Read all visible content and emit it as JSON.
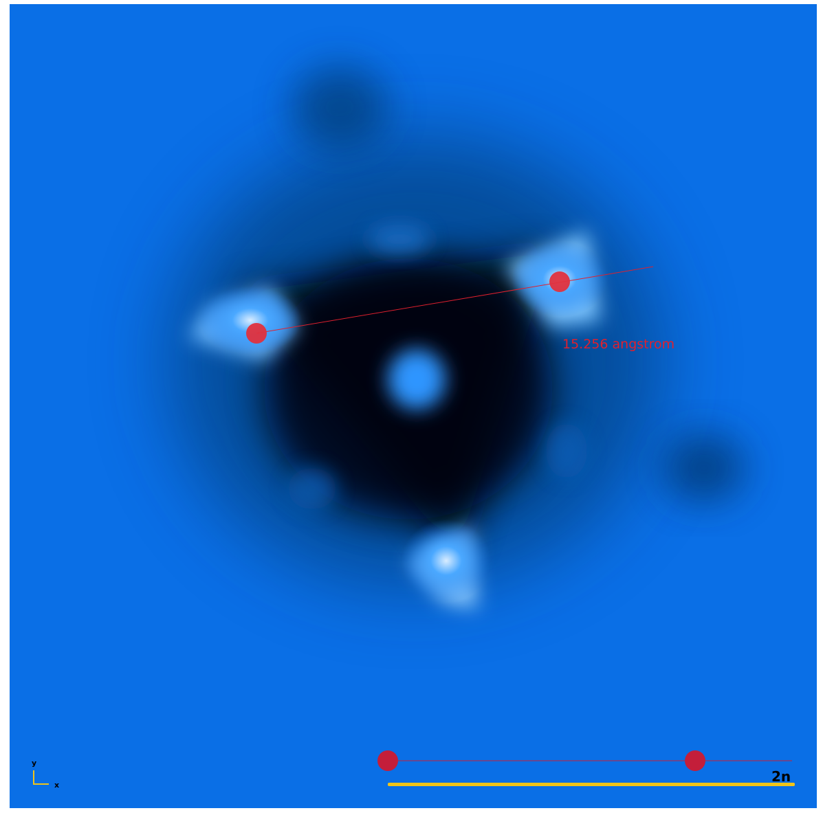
{
  "measurement": {
    "distance_label": "15.256  angstrom"
  },
  "scale_bar": {
    "label": "2n"
  },
  "axes": {
    "y_label": "y",
    "x_label": "x"
  },
  "colors": {
    "background": "#0a6fe6",
    "marker": "#e0202e",
    "scale_bar": "#f0c419",
    "axis": "#f0c419"
  }
}
